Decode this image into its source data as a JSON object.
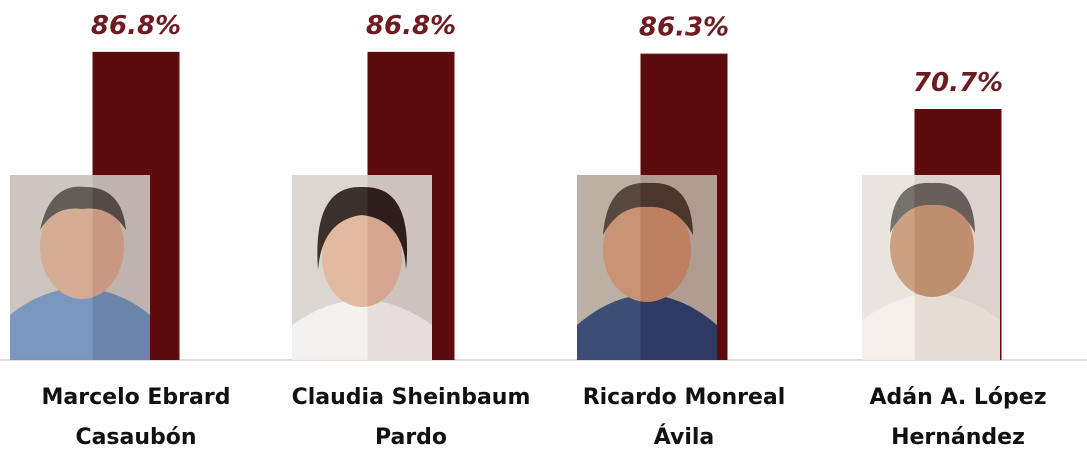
{
  "chart_data": {
    "type": "bar",
    "categories": [
      "Marcelo Ebrard Casaubón",
      "Claudia Sheinbaum Pardo",
      "Ricardo Monreal Ávila",
      "Adán A. López Hernández"
    ],
    "values": [
      86.8,
      86.8,
      86.3,
      70.7
    ],
    "value_labels": [
      "86.8%",
      "86.8%",
      "86.3%",
      "70.7%"
    ],
    "color": "#5e0b0e",
    "ylim": [
      0,
      100
    ]
  }
}
